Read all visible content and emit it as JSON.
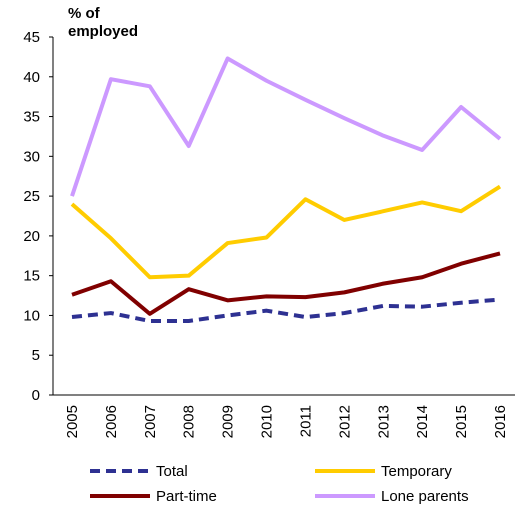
{
  "chart_data": {
    "type": "line",
    "y_label": "% of employed",
    "categories": [
      "2005",
      "2006",
      "2007",
      "2008",
      "2009",
      "2010",
      "2011",
      "2012",
      "2013",
      "2014",
      "2015",
      "2016"
    ],
    "series": [
      {
        "name": "Total",
        "color": "#2e3192",
        "dashed": true,
        "values": [
          9.8,
          10.3,
          9.3,
          9.3,
          10.0,
          10.6,
          9.8,
          10.3,
          11.2,
          11.1,
          11.6,
          12.0
        ]
      },
      {
        "name": "Temporary",
        "color": "#ffcc00",
        "values": [
          24.0,
          19.7,
          14.8,
          15.0,
          19.1,
          19.8,
          24.6,
          22.0,
          23.1,
          24.2,
          23.1,
          26.2
        ]
      },
      {
        "name": "Part-time",
        "color": "#800000",
        "values": [
          12.6,
          14.3,
          10.2,
          13.3,
          11.9,
          12.4,
          12.3,
          12.9,
          14.0,
          14.8,
          16.5,
          17.8
        ]
      },
      {
        "name": "Lone parents",
        "color": "#cc99ff",
        "values": [
          25.0,
          39.7,
          38.8,
          31.3,
          42.3,
          39.5,
          37.1,
          34.8,
          32.6,
          30.8,
          36.2,
          32.2
        ]
      }
    ],
    "ylim": [
      0,
      45
    ],
    "yticks": [
      0,
      5,
      10,
      15,
      20,
      25,
      30,
      35,
      40,
      45
    ],
    "grid": false
  }
}
